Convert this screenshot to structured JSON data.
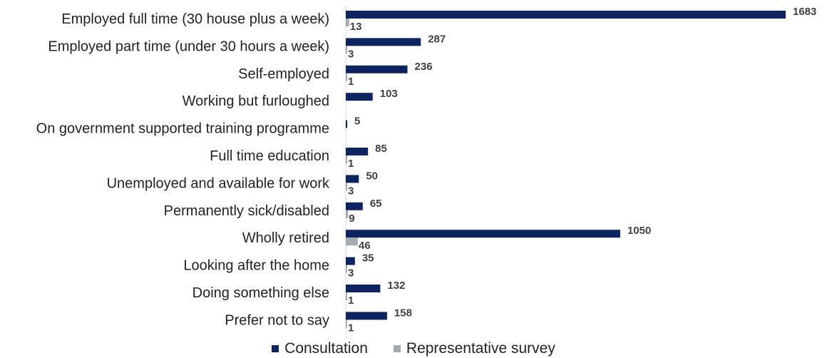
{
  "chart_data": {
    "type": "bar",
    "orientation": "horizontal",
    "categories": [
      "Employed full time (30 house plus a week)",
      "Employed part time (under 30 hours a week)",
      "Self-employed",
      "Working but furloughed",
      "On government supported training programme",
      "Full time education",
      "Unemployed and available for work",
      "Permanently sick/disabled",
      "Wholly retired",
      "Looking after the home",
      "Doing something else",
      "Prefer not to say"
    ],
    "series": [
      {
        "name": "Consultation",
        "color": "#0d2461",
        "values": [
          1683,
          287,
          236,
          103,
          5,
          85,
          50,
          65,
          1050,
          35,
          132,
          158
        ]
      },
      {
        "name": "Representative survey",
        "color": "#a6aab3",
        "values": [
          13,
          3,
          1,
          null,
          null,
          1,
          3,
          9,
          46,
          3,
          1,
          1
        ]
      }
    ],
    "legend_position": "bottom",
    "grid": false
  }
}
